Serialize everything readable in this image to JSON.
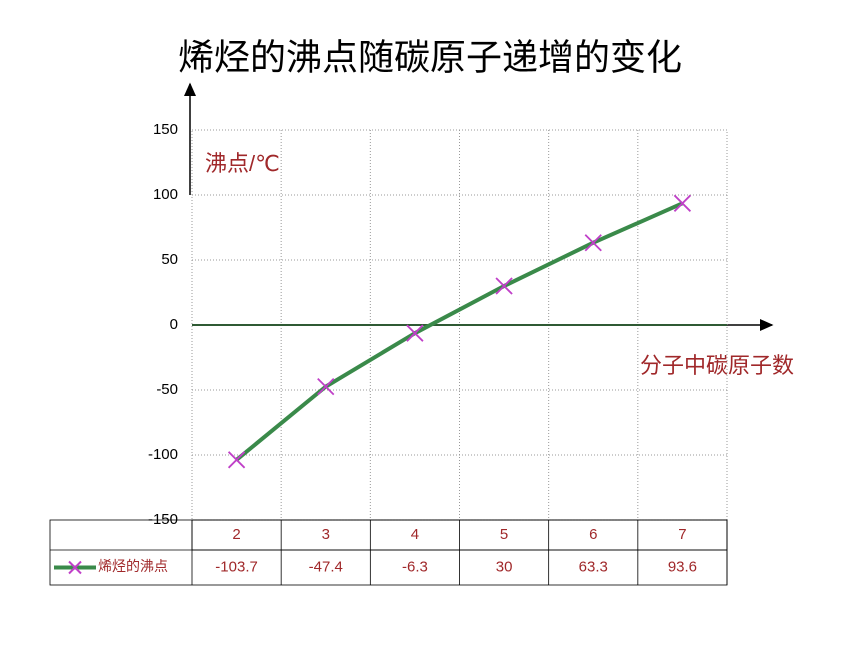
{
  "chart_data": {
    "type": "line",
    "title": "烯烃的沸点随碳原子递增的变化",
    "y_label": "沸点/℃",
    "x_label": "分子中碳原子数",
    "categories": [
      2,
      3,
      4,
      5,
      6,
      7
    ],
    "series": [
      {
        "name": "烯烃的沸点",
        "color": "#3a8a4a",
        "marker_color": "#c040c8",
        "values": [
          -103.7,
          -47.4,
          -6.3,
          30,
          63.3,
          93.6
        ]
      }
    ],
    "ylim": [
      -150,
      150
    ],
    "yticks": [
      150,
      100,
      50,
      0,
      -50,
      -100,
      -150
    ],
    "grid": true
  }
}
